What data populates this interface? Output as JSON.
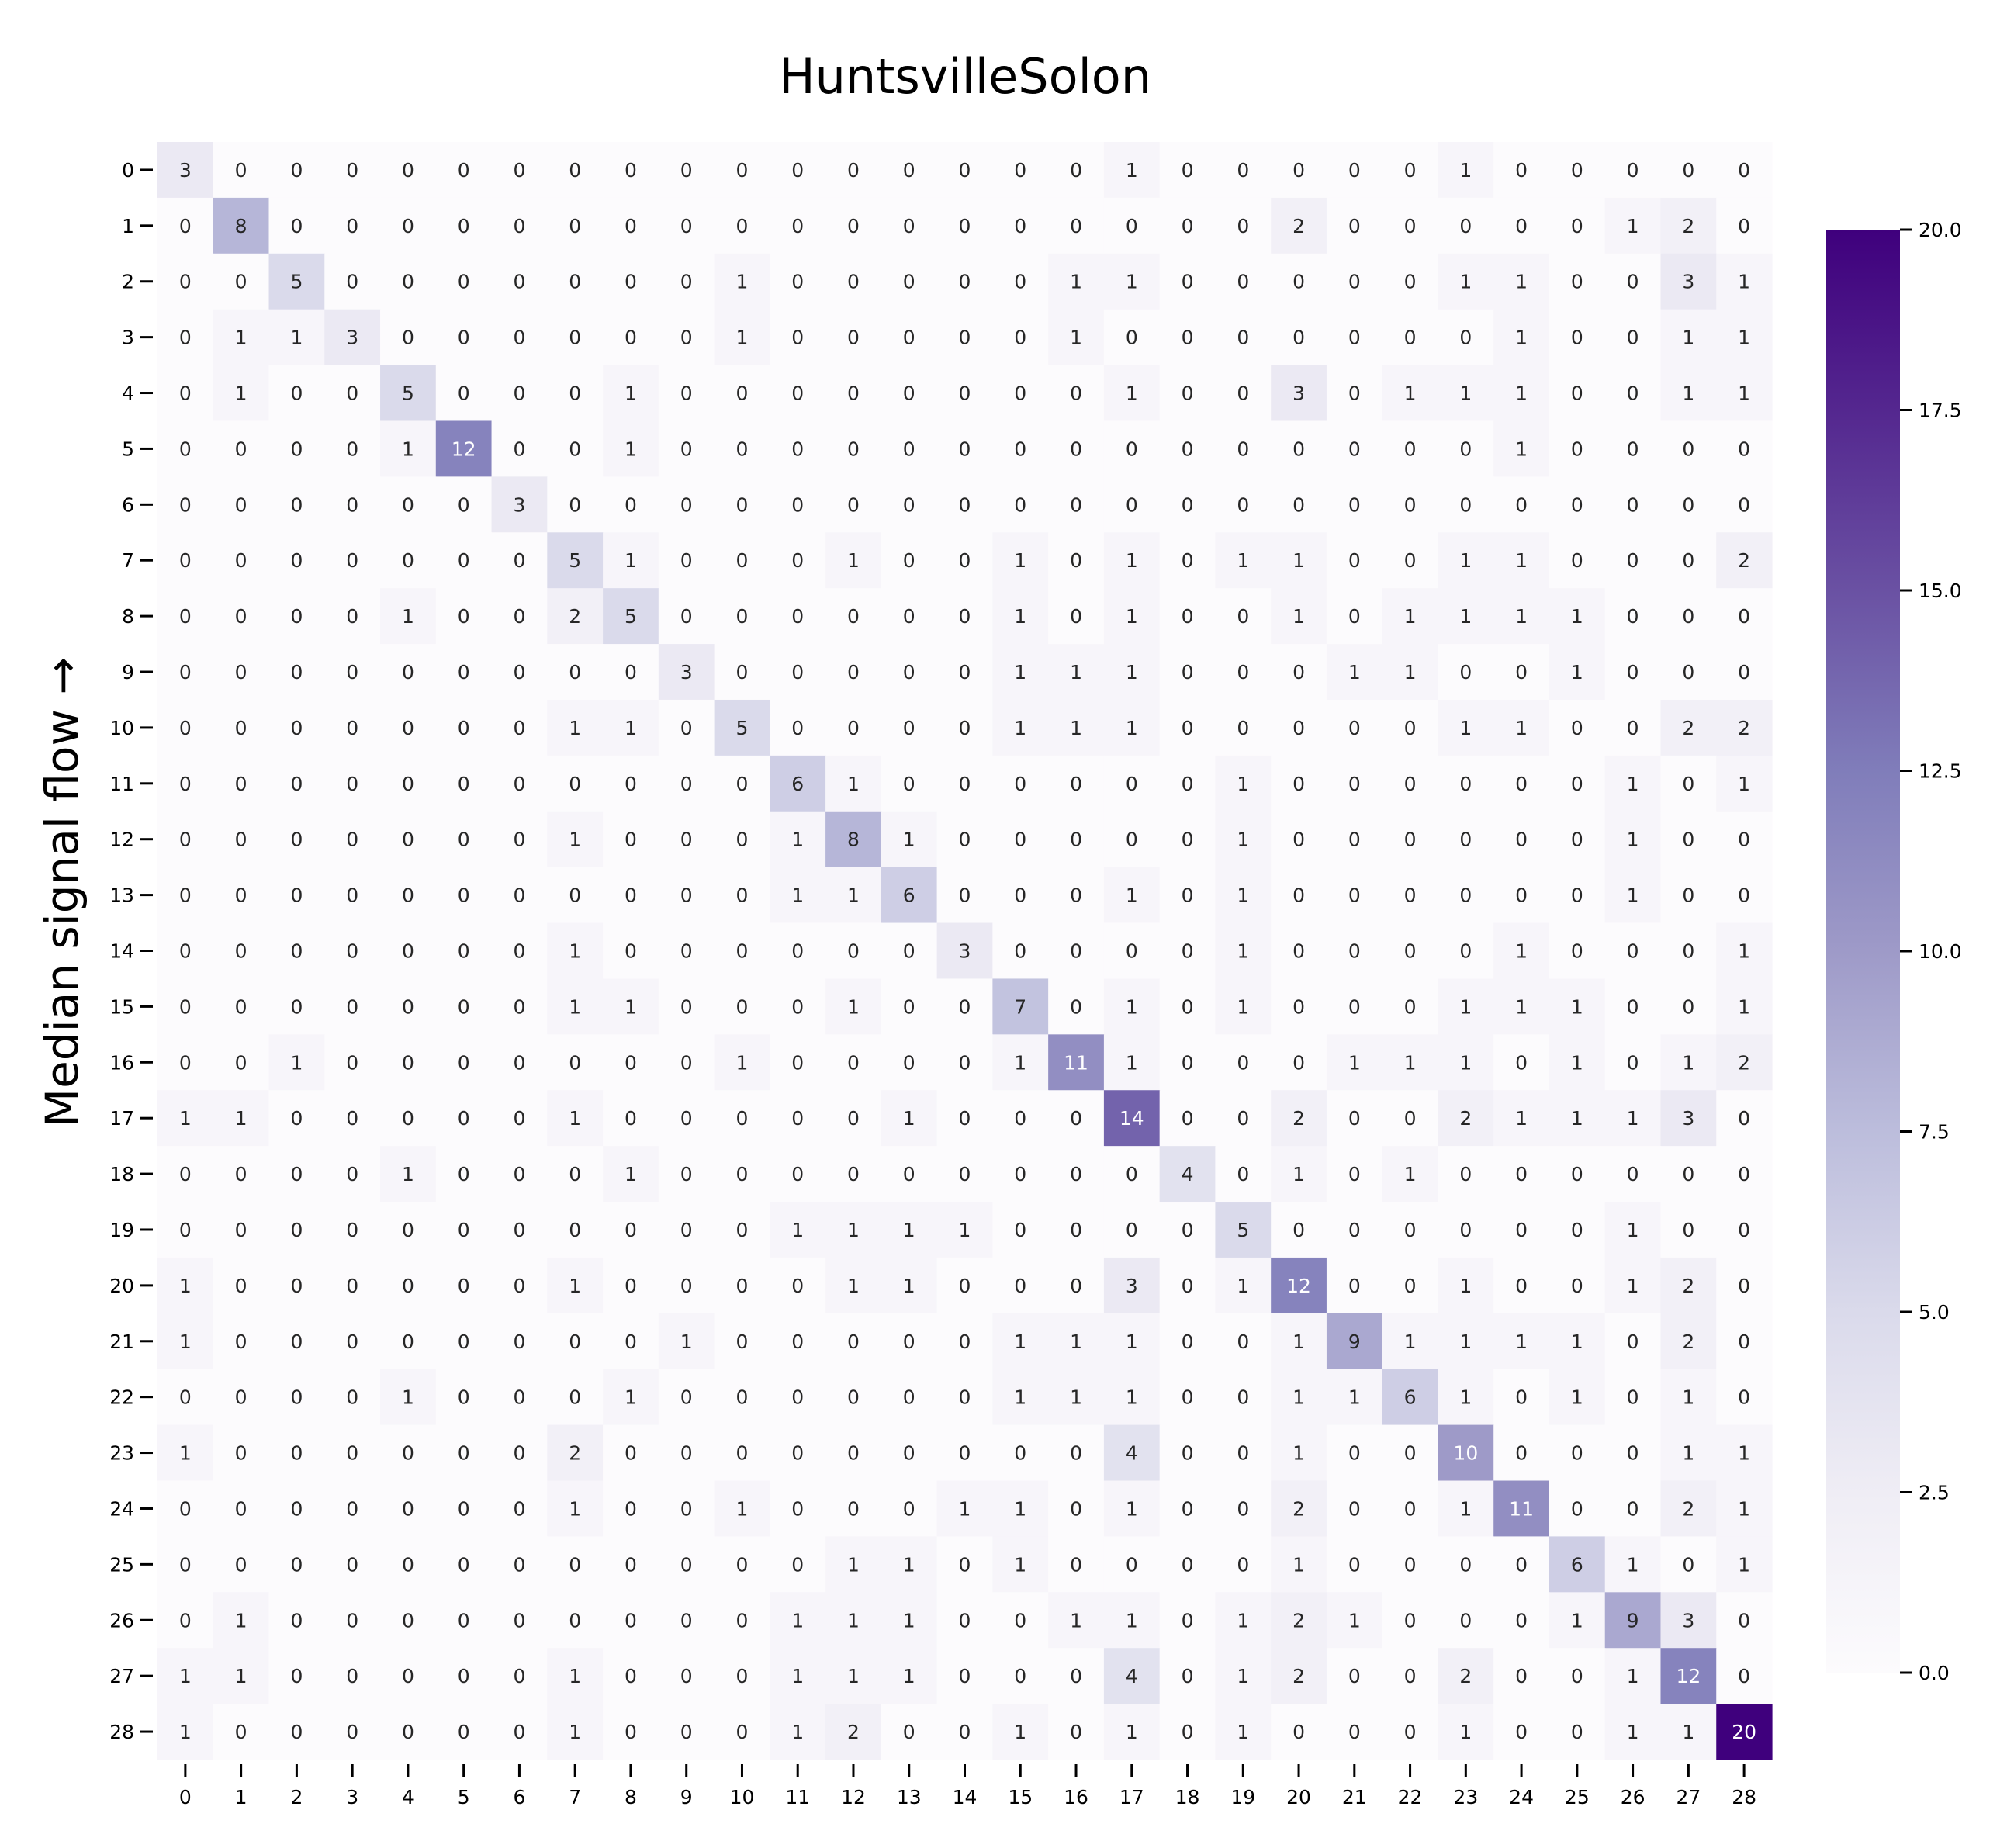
{
  "chart_data": {
    "type": "heatmap",
    "title": "HuntsvilleSolon",
    "xlabel": "",
    "ylabel": "Median signal flow →",
    "x_labels": [
      "0",
      "1",
      "2",
      "3",
      "4",
      "5",
      "6",
      "7",
      "8",
      "9",
      "10",
      "11",
      "12",
      "13",
      "14",
      "15",
      "16",
      "17",
      "18",
      "19",
      "20",
      "21",
      "22",
      "23",
      "24",
      "25",
      "26",
      "27",
      "28"
    ],
    "y_labels": [
      "0",
      "1",
      "2",
      "3",
      "4",
      "5",
      "6",
      "7",
      "8",
      "9",
      "10",
      "11",
      "12",
      "13",
      "14",
      "15",
      "16",
      "17",
      "18",
      "19",
      "20",
      "21",
      "22",
      "23",
      "24",
      "25",
      "26",
      "27",
      "28"
    ],
    "matrix": [
      [
        3,
        0,
        0,
        0,
        0,
        0,
        0,
        0,
        0,
        0,
        0,
        0,
        0,
        0,
        0,
        0,
        0,
        1,
        0,
        0,
        0,
        0,
        0,
        1,
        0,
        0,
        0,
        0,
        0
      ],
      [
        0,
        8,
        0,
        0,
        0,
        0,
        0,
        0,
        0,
        0,
        0,
        0,
        0,
        0,
        0,
        0,
        0,
        0,
        0,
        0,
        2,
        0,
        0,
        0,
        0,
        0,
        1,
        2,
        0
      ],
      [
        0,
        0,
        5,
        0,
        0,
        0,
        0,
        0,
        0,
        0,
        1,
        0,
        0,
        0,
        0,
        0,
        1,
        1,
        0,
        0,
        0,
        0,
        0,
        1,
        1,
        0,
        0,
        3,
        1
      ],
      [
        0,
        1,
        1,
        3,
        0,
        0,
        0,
        0,
        0,
        0,
        1,
        0,
        0,
        0,
        0,
        0,
        1,
        0,
        0,
        0,
        0,
        0,
        0,
        0,
        1,
        0,
        0,
        1,
        1
      ],
      [
        0,
        1,
        0,
        0,
        5,
        0,
        0,
        0,
        1,
        0,
        0,
        0,
        0,
        0,
        0,
        0,
        0,
        1,
        0,
        0,
        3,
        0,
        1,
        1,
        1,
        0,
        0,
        1,
        1
      ],
      [
        0,
        0,
        0,
        0,
        1,
        12,
        0,
        0,
        1,
        0,
        0,
        0,
        0,
        0,
        0,
        0,
        0,
        0,
        0,
        0,
        0,
        0,
        0,
        0,
        1,
        0,
        0,
        0,
        0
      ],
      [
        0,
        0,
        0,
        0,
        0,
        0,
        3,
        0,
        0,
        0,
        0,
        0,
        0,
        0,
        0,
        0,
        0,
        0,
        0,
        0,
        0,
        0,
        0,
        0,
        0,
        0,
        0,
        0,
        0
      ],
      [
        0,
        0,
        0,
        0,
        0,
        0,
        0,
        5,
        1,
        0,
        0,
        0,
        1,
        0,
        0,
        1,
        0,
        1,
        0,
        1,
        1,
        0,
        0,
        1,
        1,
        0,
        0,
        0,
        2
      ],
      [
        0,
        0,
        0,
        0,
        1,
        0,
        0,
        2,
        5,
        0,
        0,
        0,
        0,
        0,
        0,
        1,
        0,
        1,
        0,
        0,
        1,
        0,
        1,
        1,
        1,
        1,
        0,
        0,
        0
      ],
      [
        0,
        0,
        0,
        0,
        0,
        0,
        0,
        0,
        0,
        3,
        0,
        0,
        0,
        0,
        0,
        1,
        1,
        1,
        0,
        0,
        0,
        1,
        1,
        0,
        0,
        1,
        0,
        0,
        0
      ],
      [
        0,
        0,
        0,
        0,
        0,
        0,
        0,
        1,
        1,
        0,
        5,
        0,
        0,
        0,
        0,
        1,
        1,
        1,
        0,
        0,
        0,
        0,
        0,
        1,
        1,
        0,
        0,
        2,
        2
      ],
      [
        0,
        0,
        0,
        0,
        0,
        0,
        0,
        0,
        0,
        0,
        0,
        6,
        1,
        0,
        0,
        0,
        0,
        0,
        0,
        1,
        0,
        0,
        0,
        0,
        0,
        0,
        1,
        0,
        1
      ],
      [
        0,
        0,
        0,
        0,
        0,
        0,
        0,
        1,
        0,
        0,
        0,
        1,
        8,
        1,
        0,
        0,
        0,
        0,
        0,
        1,
        0,
        0,
        0,
        0,
        0,
        0,
        1,
        0,
        0
      ],
      [
        0,
        0,
        0,
        0,
        0,
        0,
        0,
        0,
        0,
        0,
        0,
        1,
        1,
        6,
        0,
        0,
        0,
        1,
        0,
        1,
        0,
        0,
        0,
        0,
        0,
        0,
        1,
        0,
        0
      ],
      [
        0,
        0,
        0,
        0,
        0,
        0,
        0,
        1,
        0,
        0,
        0,
        0,
        0,
        0,
        3,
        0,
        0,
        0,
        0,
        1,
        0,
        0,
        0,
        0,
        1,
        0,
        0,
        0,
        1
      ],
      [
        0,
        0,
        0,
        0,
        0,
        0,
        0,
        1,
        1,
        0,
        0,
        0,
        1,
        0,
        0,
        7,
        0,
        1,
        0,
        1,
        0,
        0,
        0,
        1,
        1,
        1,
        0,
        0,
        1
      ],
      [
        0,
        0,
        1,
        0,
        0,
        0,
        0,
        0,
        0,
        0,
        1,
        0,
        0,
        0,
        0,
        1,
        11,
        1,
        0,
        0,
        0,
        1,
        1,
        1,
        0,
        1,
        0,
        1,
        2
      ],
      [
        1,
        1,
        0,
        0,
        0,
        0,
        0,
        1,
        0,
        0,
        0,
        0,
        0,
        1,
        0,
        0,
        0,
        14,
        0,
        0,
        2,
        0,
        0,
        2,
        1,
        1,
        1,
        3,
        0
      ],
      [
        0,
        0,
        0,
        0,
        1,
        0,
        0,
        0,
        1,
        0,
        0,
        0,
        0,
        0,
        0,
        0,
        0,
        0,
        4,
        0,
        1,
        0,
        1,
        0,
        0,
        0,
        0,
        0,
        0
      ],
      [
        0,
        0,
        0,
        0,
        0,
        0,
        0,
        0,
        0,
        0,
        0,
        1,
        1,
        1,
        1,
        0,
        0,
        0,
        0,
        5,
        0,
        0,
        0,
        0,
        0,
        0,
        1,
        0,
        0
      ],
      [
        1,
        0,
        0,
        0,
        0,
        0,
        0,
        1,
        0,
        0,
        0,
        0,
        1,
        1,
        0,
        0,
        0,
        3,
        0,
        1,
        12,
        0,
        0,
        1,
        0,
        0,
        1,
        2,
        0
      ],
      [
        1,
        0,
        0,
        0,
        0,
        0,
        0,
        0,
        0,
        1,
        0,
        0,
        0,
        0,
        0,
        1,
        1,
        1,
        0,
        0,
        1,
        9,
        1,
        1,
        1,
        1,
        0,
        2,
        0
      ],
      [
        0,
        0,
        0,
        0,
        1,
        0,
        0,
        0,
        1,
        0,
        0,
        0,
        0,
        0,
        0,
        1,
        1,
        1,
        0,
        0,
        1,
        1,
        6,
        1,
        0,
        1,
        0,
        1,
        0
      ],
      [
        1,
        0,
        0,
        0,
        0,
        0,
        0,
        2,
        0,
        0,
        0,
        0,
        0,
        0,
        0,
        0,
        0,
        4,
        0,
        0,
        1,
        0,
        0,
        10,
        0,
        0,
        0,
        1,
        1
      ],
      [
        0,
        0,
        0,
        0,
        0,
        0,
        0,
        1,
        0,
        0,
        1,
        0,
        0,
        0,
        1,
        1,
        0,
        1,
        0,
        0,
        2,
        0,
        0,
        1,
        11,
        0,
        0,
        2,
        1
      ],
      [
        0,
        0,
        0,
        0,
        0,
        0,
        0,
        0,
        0,
        0,
        0,
        0,
        1,
        1,
        0,
        1,
        0,
        0,
        0,
        0,
        1,
        0,
        0,
        0,
        0,
        6,
        1,
        0,
        1
      ],
      [
        0,
        1,
        0,
        0,
        0,
        0,
        0,
        0,
        0,
        0,
        0,
        1,
        1,
        1,
        0,
        0,
        1,
        1,
        0,
        1,
        2,
        1,
        0,
        0,
        0,
        1,
        9,
        3,
        0
      ],
      [
        1,
        1,
        0,
        0,
        0,
        0,
        0,
        1,
        0,
        0,
        0,
        1,
        1,
        1,
        0,
        0,
        0,
        4,
        0,
        1,
        2,
        0,
        0,
        2,
        0,
        0,
        1,
        12,
        0
      ],
      [
        1,
        0,
        0,
        0,
        0,
        0,
        0,
        1,
        0,
        0,
        0,
        1,
        2,
        0,
        0,
        1,
        0,
        1,
        0,
        1,
        0,
        0,
        0,
        1,
        0,
        0,
        1,
        1,
        20
      ]
    ],
    "colorbar": {
      "min": 0,
      "max": 20,
      "ticks": [
        "0.0",
        "2.5",
        "5.0",
        "7.5",
        "10.0",
        "12.5",
        "15.0",
        "17.5",
        "20.0"
      ],
      "colormap": "Purples",
      "low_color": "#fcfbfd",
      "high_color": "#3f007d"
    },
    "grid": false
  }
}
